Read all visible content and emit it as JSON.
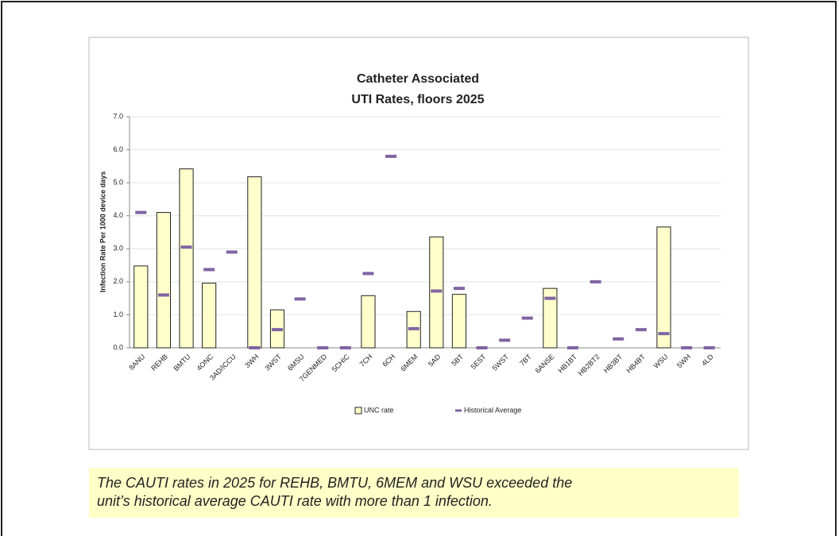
{
  "chart_data": {
    "type": "bar",
    "title": [
      "Catheter Associated",
      "UTI Rates, floors 2025"
    ],
    "y_label": "Infection Rate Per 1000 device days",
    "categories": [
      "8ANU",
      "REHB",
      "BMTU",
      "4ONC",
      "3AD/ICCU",
      "3WH",
      "3WST",
      "6MSU",
      "7GENMED",
      "5CHIC",
      "7CH",
      "6CH",
      "6MEM",
      "5AD",
      "5BT",
      "5EST",
      "5WST",
      "7BT",
      "6ANSE",
      "HB1BT",
      "HB2BT2",
      "HB3BT",
      "HB4BT",
      "WSU",
      "5WH",
      "4LD"
    ],
    "series": [
      {
        "name": "UNC rate",
        "color": "#ffffcc",
        "kind": "bar",
        "values": [
          2.48,
          4.1,
          5.42,
          1.96,
          0,
          5.18,
          1.15,
          0,
          0,
          0,
          1.58,
          0,
          1.1,
          3.36,
          1.62,
          0,
          0,
          0,
          1.8,
          0,
          0,
          0,
          0,
          3.66,
          0,
          0
        ]
      },
      {
        "name": "Historical Average",
        "color": "#8064a2",
        "kind": "dash",
        "values": [
          4.1,
          1.6,
          3.05,
          2.37,
          2.9,
          0,
          0.55,
          1.48,
          0,
          0,
          2.25,
          5.8,
          0.58,
          1.72,
          1.8,
          0,
          0.23,
          0.9,
          1.5,
          0,
          2.0,
          0.27,
          0.55,
          0.43,
          0,
          0
        ]
      }
    ],
    "ylim": [
      0,
      7
    ],
    "yticks": [
      {
        "value": 0,
        "label": "0.0"
      },
      {
        "value": 1,
        "label": "1.0"
      },
      {
        "value": 2,
        "label": "2.0"
      },
      {
        "value": 3,
        "label": "3.0"
      },
      {
        "value": 4,
        "label": "4.0"
      },
      {
        "value": 5,
        "label": "5.0"
      },
      {
        "value": 6,
        "label": "6.0"
      },
      {
        "value": 7,
        "label": "7.0"
      }
    ],
    "grid": true
  },
  "caption": [
    "The CAUTI rates in 2025 for REHB, BMTU, 6MEM and WSU exceeded the",
    "unit’s historical average CAUTI rate with more than 1 infection."
  ]
}
